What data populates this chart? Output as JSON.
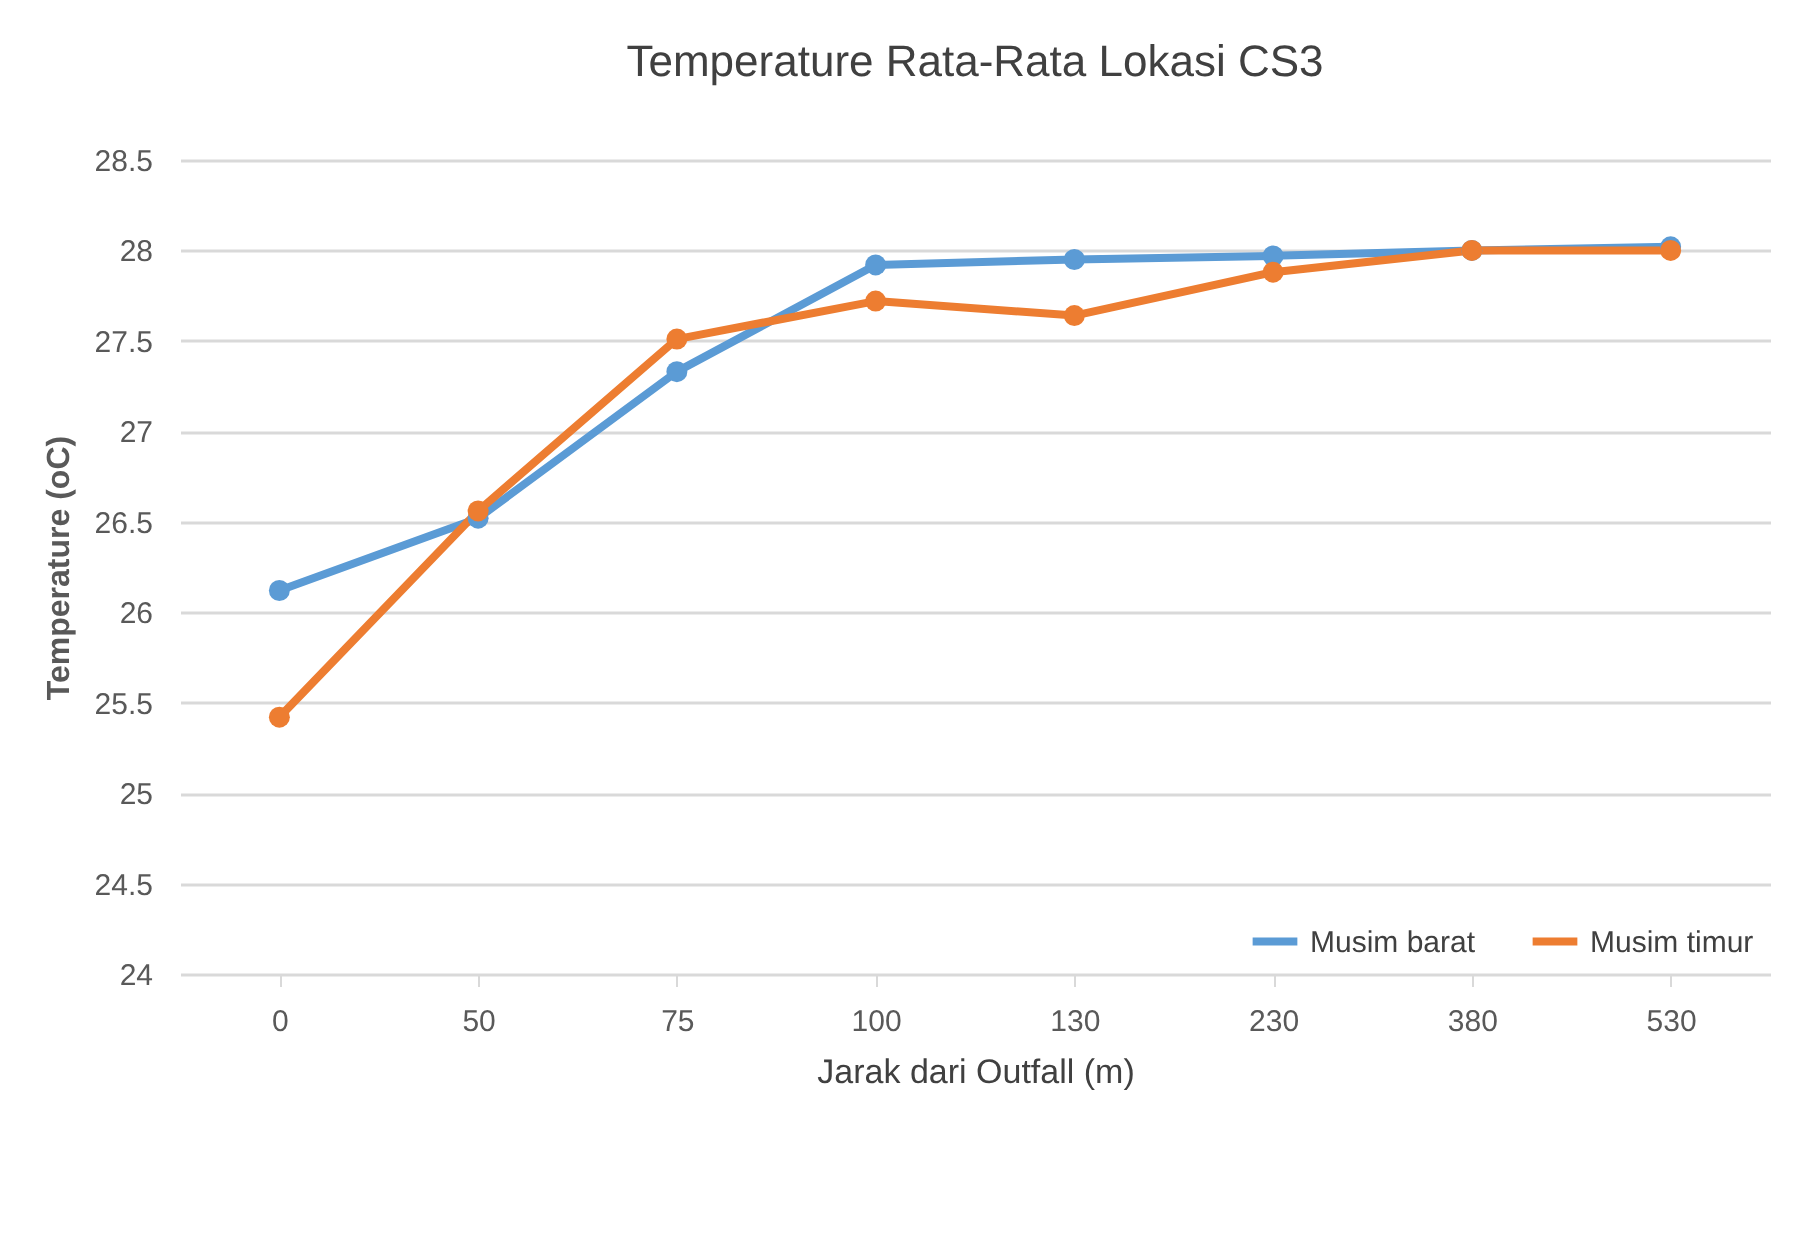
{
  "chart_data": {
    "type": "line",
    "title": "Temperature  Rata-Rata Lokasi CS3",
    "xlabel": "Jarak dari Outfall (m)",
    "ylabel": "Temperature (oC)",
    "categories": [
      "0",
      "50",
      "75",
      "100",
      "130",
      "230",
      "380",
      "530"
    ],
    "series": [
      {
        "name": "Musim barat",
        "color": "#5b9bd5",
        "values": [
          26.12,
          26.52,
          27.33,
          27.92,
          27.95,
          27.97,
          28.0,
          28.02
        ]
      },
      {
        "name": "Musim timur",
        "color": "#ed7d31",
        "values": [
          25.42,
          26.56,
          27.51,
          27.72,
          27.64,
          27.88,
          28.0,
          28.0
        ]
      }
    ],
    "ylim": [
      24,
      28.5
    ],
    "yticks": [
      24,
      24.5,
      25,
      25.5,
      26,
      26.5,
      27,
      27.5,
      28,
      28.5
    ],
    "grid": "y",
    "legend": "bottom right",
    "marker": "circle",
    "line_style": "solid"
  }
}
